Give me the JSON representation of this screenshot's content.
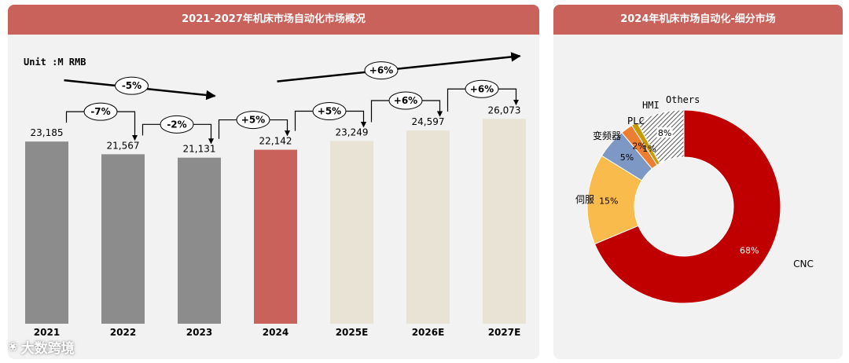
{
  "left_panel": {
    "title": "2021-2027年机床市场自动化市场概况",
    "unit_label": "Unit :M RMB"
  },
  "right_panel": {
    "title": "2024年机床市场自动化-细分市场"
  },
  "source_mark": "大数跨境",
  "colors": {
    "header": "#c8625a",
    "panel": "#f2f2f2",
    "actual": "#8c8c8c",
    "highlight": "#c8625a",
    "forecast": "#e8e3d5"
  },
  "chart_data": [
    {
      "type": "bar",
      "categories": [
        "2021",
        "2022",
        "2023",
        "2024",
        "2025E",
        "2026E",
        "2027E"
      ],
      "values": [
        23185,
        21567,
        21131,
        22142,
        23249,
        24597,
        26073
      ],
      "value_labels": [
        "23,185",
        "21,567",
        "21,131",
        "22,142",
        "23,249",
        "24,597",
        "26,073"
      ],
      "bar_colors": [
        "#8c8c8c",
        "#8c8c8c",
        "#8c8c8c",
        "#c8625a",
        "#e8e3d5",
        "#e8e3d5",
        "#e8e3d5"
      ],
      "ylim": [
        0,
        29000
      ],
      "growth_labels": [
        "-7%",
        "-2%",
        "+5%",
        "+5%",
        "+6%",
        "+6%"
      ],
      "trend_labels": [
        "-5%",
        "+6%"
      ],
      "title": "2021-2027年机床市场自动化市场概况",
      "unit": "Unit :M RMB"
    },
    {
      "type": "pie",
      "donut": true,
      "title": "2024年机床市场自动化-细分市场",
      "slices": [
        {
          "label": "CNC",
          "value": 68,
          "pct_label": "68%",
          "color": "#c00000"
        },
        {
          "label": "伺服",
          "value": 15,
          "pct_label": "15%",
          "color": "#f9bb4b"
        },
        {
          "label": "变频器",
          "value": 5,
          "pct_label": "5%",
          "color": "#7e98c6"
        },
        {
          "label": "PLC",
          "value": 2,
          "pct_label": "2%",
          "color": "#ed7d31"
        },
        {
          "label": "HMI",
          "value": 1,
          "pct_label": "1%",
          "color": "#c99a00"
        },
        {
          "label": "Others",
          "value": 8,
          "pct_label": "8%",
          "color": "hatch"
        }
      ]
    }
  ]
}
